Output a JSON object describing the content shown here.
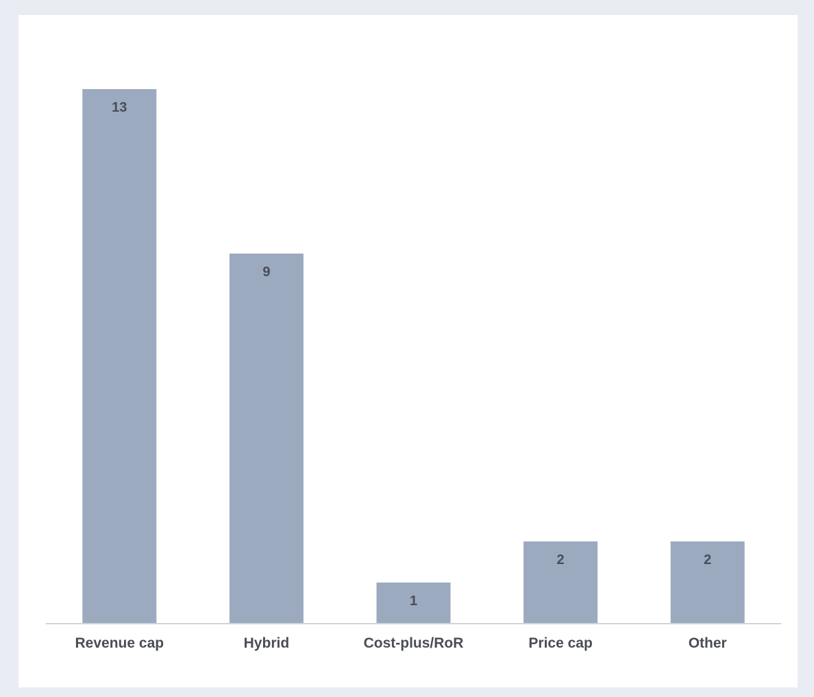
{
  "chart_data": {
    "type": "bar",
    "categories": [
      "Revenue cap",
      "Hybrid",
      "Cost-plus/RoR",
      "Price cap",
      "Other"
    ],
    "values": [
      13,
      9,
      1,
      2,
      2
    ],
    "title": "",
    "xlabel": "",
    "ylabel": "",
    "ylim": [
      0,
      13
    ],
    "grid": false,
    "legend": "none",
    "data_labels": true,
    "bar_color": "#9caac0",
    "axis_color": "#d0d4da",
    "text_color": "#4a4d55",
    "background": "#e9ecf2",
    "panel_color": "#ffffff"
  }
}
